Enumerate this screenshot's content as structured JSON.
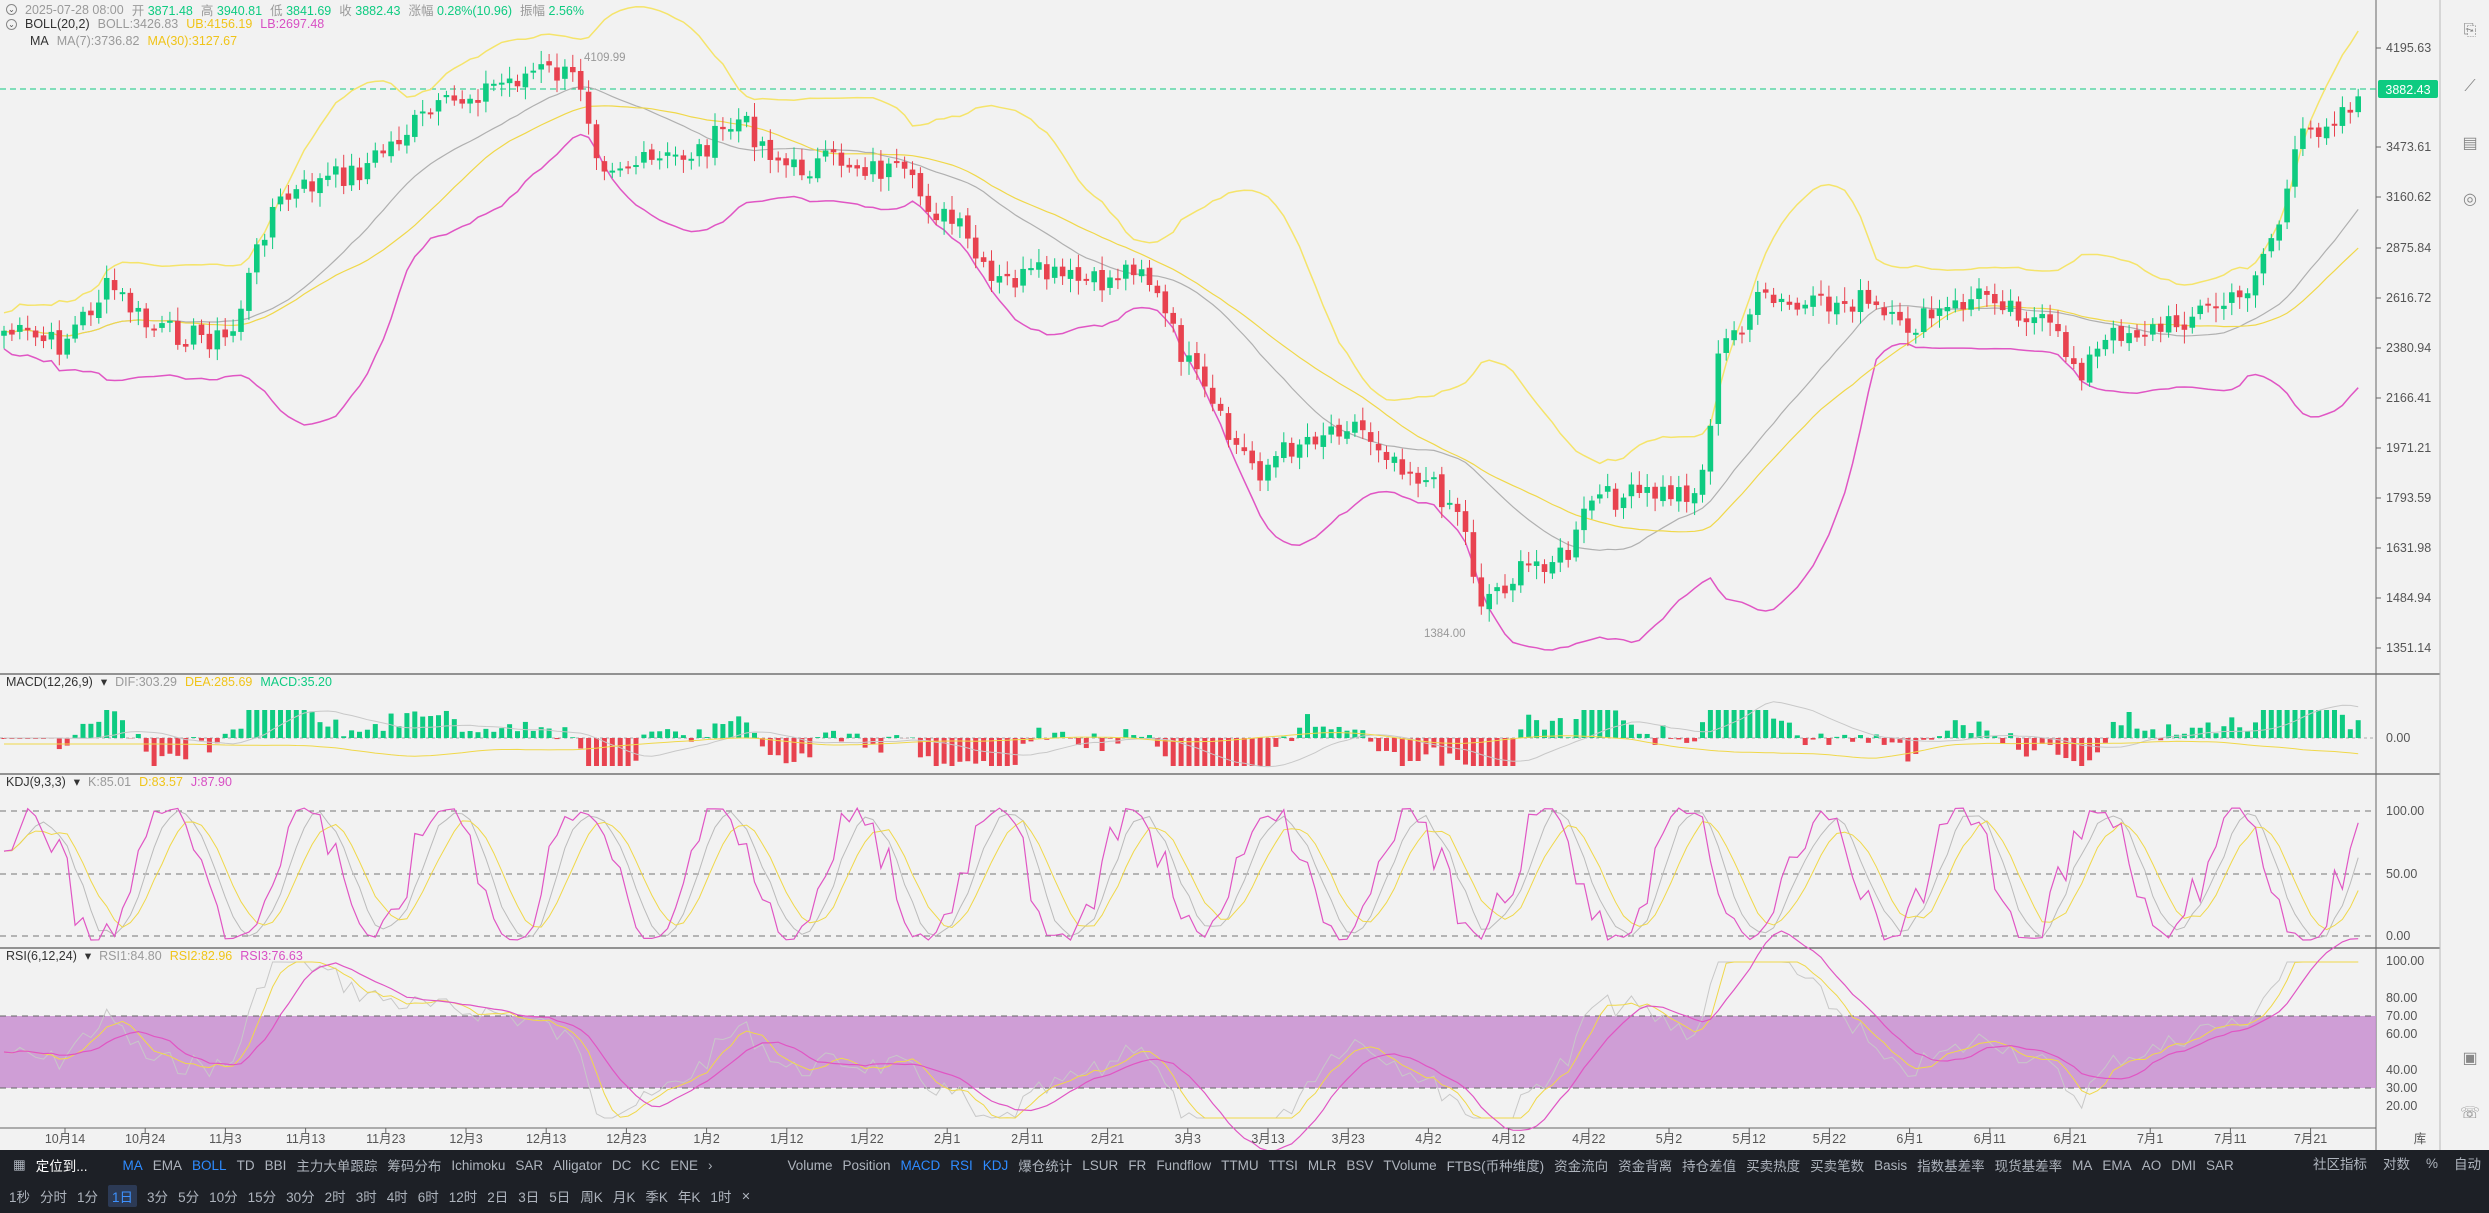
{
  "header": {
    "date": "2025-07-28 08:00",
    "open_label": "开",
    "open": "3871.48",
    "high_label": "高",
    "high": "3940.81",
    "low_label": "低",
    "low": "3841.69",
    "close_label": "收",
    "close": "3882.43",
    "change_label": "涨幅",
    "change": "0.28%(10.96)",
    "amp_label": "振幅",
    "amp": "2.56%"
  },
  "boll": {
    "name": "BOLL(20,2)",
    "boll": "BOLL:3426.83",
    "ub": "UB:4156.19",
    "lb": "LB:2697.48"
  },
  "ma": {
    "name": "MA",
    "ma7": "MA(7):3736.82",
    "ma30": "MA(30):3127.67"
  },
  "macd": {
    "name": "MACD(12,26,9)",
    "dif": "DIF:303.29",
    "dea": "DEA:285.69",
    "macd": "MACD:35.20"
  },
  "kdj": {
    "name": "KDJ(9,3,3)",
    "k": "K:85.01",
    "d": "D:83.57",
    "j": "J:87.90"
  },
  "rsi": {
    "name": "RSI(6,12,24)",
    "rsi1": "RSI1:84.80",
    "rsi2": "RSI2:82.96",
    "rsi3": "RSI3:76.63"
  },
  "price_axis": [
    "4195.63",
    "3473.61",
    "3160.62",
    "2875.84",
    "2616.72",
    "2380.94",
    "2166.41",
    "1971.21",
    "1793.59",
    "1631.98",
    "1484.94",
    "1351.14"
  ],
  "macd_axis": [
    "0.00"
  ],
  "kdj_axis": [
    "100.00",
    "50.00",
    "0.00"
  ],
  "rsi_axis": [
    "100.00",
    "80.00",
    "70.00",
    "60.00",
    "40.00",
    "30.00",
    "20.00"
  ],
  "last_price": "3882.43",
  "high_marker": "4109.99",
  "low_marker": "1384.00",
  "date_axis": [
    "10月14",
    "10月24",
    "11月3",
    "11月13",
    "11月23",
    "12月3",
    "12月13",
    "12月23",
    "1月2",
    "1月12",
    "1月22",
    "2月1",
    "2月11",
    "2月21",
    "3月3",
    "3月13",
    "3月23",
    "4月2",
    "4月12",
    "4月22",
    "5月2",
    "5月12",
    "5月22",
    "6月1",
    "6月11",
    "6月21",
    "7月1",
    "7月11",
    "7月21"
  ],
  "colors": {
    "up": "#0ecb81",
    "down": "#e8424f",
    "boll_mid": "#b0b0b0",
    "boll_up": "#f5e46b",
    "boll_lb": "#e056c4",
    "ma7": "#c0c0c0",
    "ma30": "#f0d84a",
    "rsi_band": "#c98fd1",
    "accent": "#2e8bff"
  },
  "bottom": {
    "goto": "定位到...",
    "indicators": [
      "MA",
      "EMA",
      "BOLL",
      "TD",
      "BBI",
      "主力大单跟踪",
      "筹码分布",
      "Ichimoku",
      "SAR",
      "Alligator",
      "DC",
      "KC",
      "ENE"
    ],
    "indicators2": [
      "Volume",
      "Position",
      "MACD",
      "RSI",
      "KDJ",
      "爆仓统计",
      "LSUR",
      "FR",
      "Fundflow",
      "TTMU",
      "TTSI",
      "MLR",
      "BSV",
      "TVolume",
      "FTBS(币种维度)",
      "资金流向",
      "资金背离",
      "持仓差值",
      "买卖热度",
      "买卖笔数",
      "Basis",
      "指数基差率",
      "现货基差率",
      "MA",
      "EMA",
      "AO",
      "DMI",
      "SAR"
    ],
    "community": "社区指标",
    "log": "对数",
    "pct": "%",
    "auto": "自动",
    "intervals": [
      "1秒",
      "分时",
      "1分",
      "3分",
      "5分",
      "10分",
      "15分",
      "30分",
      "2时",
      "3时",
      "4时",
      "6时",
      "12时",
      "2日",
      "3日",
      "5日",
      "周K",
      "月K",
      "季K",
      "年K",
      "1时"
    ],
    "selected_interval": "1日",
    "corner": "库"
  }
}
